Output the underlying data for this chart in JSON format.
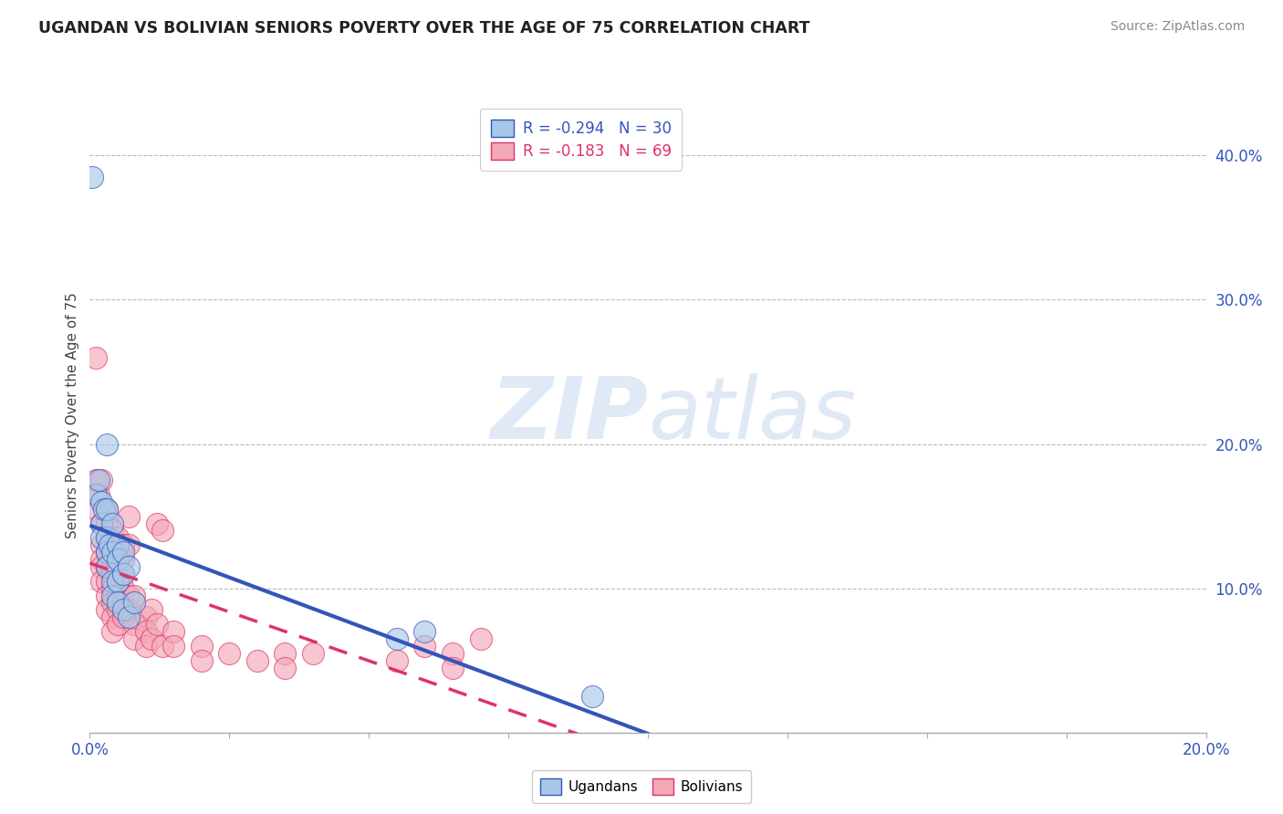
{
  "title": "UGANDAN VS BOLIVIAN SENIORS POVERTY OVER THE AGE OF 75 CORRELATION CHART",
  "source": "Source: ZipAtlas.com",
  "ylabel": "Seniors Poverty Over the Age of 75",
  "legend_ugandan": "R = -0.294   N = 30",
  "legend_bolivian": "R = -0.183   N = 69",
  "ugandan_color": "#a8c8e8",
  "bolivian_color": "#f4a8b8",
  "ugandan_line_color": "#3355bb",
  "bolivian_line_color": "#dd3366",
  "watermark_zip": "ZIP",
  "watermark_atlas": "atlas",
  "xlim": [
    0.0,
    0.2
  ],
  "ylim": [
    0.0,
    0.44
  ],
  "xticks": [
    0.0,
    0.2
  ],
  "xticklabels": [
    "0.0%",
    "20.0%"
  ],
  "yticks_right": [
    0.1,
    0.2,
    0.3,
    0.4
  ],
  "yticklabels_right": [
    "10.0%",
    "20.0%",
    "30.0%",
    "40.0%"
  ],
  "ugandan_points": [
    [
      0.0005,
      0.385
    ],
    [
      0.001,
      0.165
    ],
    [
      0.0015,
      0.175
    ],
    [
      0.002,
      0.16
    ],
    [
      0.002,
      0.145
    ],
    [
      0.002,
      0.135
    ],
    [
      0.0025,
      0.155
    ],
    [
      0.003,
      0.2
    ],
    [
      0.003,
      0.155
    ],
    [
      0.003,
      0.135
    ],
    [
      0.003,
      0.125
    ],
    [
      0.003,
      0.115
    ],
    [
      0.0035,
      0.13
    ],
    [
      0.004,
      0.145
    ],
    [
      0.004,
      0.125
    ],
    [
      0.004,
      0.105
    ],
    [
      0.004,
      0.095
    ],
    [
      0.005,
      0.13
    ],
    [
      0.005,
      0.12
    ],
    [
      0.005,
      0.105
    ],
    [
      0.005,
      0.09
    ],
    [
      0.006,
      0.125
    ],
    [
      0.006,
      0.11
    ],
    [
      0.006,
      0.085
    ],
    [
      0.007,
      0.115
    ],
    [
      0.007,
      0.08
    ],
    [
      0.008,
      0.09
    ],
    [
      0.055,
      0.065
    ],
    [
      0.06,
      0.07
    ],
    [
      0.09,
      0.025
    ]
  ],
  "bolivian_points": [
    [
      0.001,
      0.26
    ],
    [
      0.001,
      0.175
    ],
    [
      0.001,
      0.155
    ],
    [
      0.0015,
      0.165
    ],
    [
      0.002,
      0.175
    ],
    [
      0.002,
      0.145
    ],
    [
      0.002,
      0.13
    ],
    [
      0.002,
      0.12
    ],
    [
      0.002,
      0.115
    ],
    [
      0.002,
      0.105
    ],
    [
      0.003,
      0.155
    ],
    [
      0.003,
      0.145
    ],
    [
      0.003,
      0.135
    ],
    [
      0.003,
      0.125
    ],
    [
      0.003,
      0.115
    ],
    [
      0.003,
      0.105
    ],
    [
      0.003,
      0.095
    ],
    [
      0.003,
      0.085
    ],
    [
      0.004,
      0.14
    ],
    [
      0.004,
      0.13
    ],
    [
      0.004,
      0.12
    ],
    [
      0.004,
      0.11
    ],
    [
      0.004,
      0.1
    ],
    [
      0.004,
      0.09
    ],
    [
      0.004,
      0.08
    ],
    [
      0.004,
      0.07
    ],
    [
      0.005,
      0.135
    ],
    [
      0.005,
      0.125
    ],
    [
      0.005,
      0.115
    ],
    [
      0.005,
      0.105
    ],
    [
      0.005,
      0.095
    ],
    [
      0.005,
      0.085
    ],
    [
      0.005,
      0.075
    ],
    [
      0.006,
      0.13
    ],
    [
      0.006,
      0.12
    ],
    [
      0.006,
      0.11
    ],
    [
      0.006,
      0.1
    ],
    [
      0.006,
      0.09
    ],
    [
      0.006,
      0.08
    ],
    [
      0.007,
      0.15
    ],
    [
      0.007,
      0.13
    ],
    [
      0.007,
      0.095
    ],
    [
      0.007,
      0.085
    ],
    [
      0.008,
      0.095
    ],
    [
      0.008,
      0.075
    ],
    [
      0.008,
      0.065
    ],
    [
      0.01,
      0.08
    ],
    [
      0.01,
      0.07
    ],
    [
      0.01,
      0.06
    ],
    [
      0.011,
      0.085
    ],
    [
      0.011,
      0.065
    ],
    [
      0.012,
      0.145
    ],
    [
      0.012,
      0.075
    ],
    [
      0.013,
      0.14
    ],
    [
      0.013,
      0.06
    ],
    [
      0.015,
      0.07
    ],
    [
      0.015,
      0.06
    ],
    [
      0.02,
      0.06
    ],
    [
      0.02,
      0.05
    ],
    [
      0.025,
      0.055
    ],
    [
      0.03,
      0.05
    ],
    [
      0.035,
      0.055
    ],
    [
      0.035,
      0.045
    ],
    [
      0.04,
      0.055
    ],
    [
      0.055,
      0.05
    ],
    [
      0.06,
      0.06
    ],
    [
      0.065,
      0.055
    ],
    [
      0.065,
      0.045
    ],
    [
      0.07,
      0.065
    ]
  ]
}
